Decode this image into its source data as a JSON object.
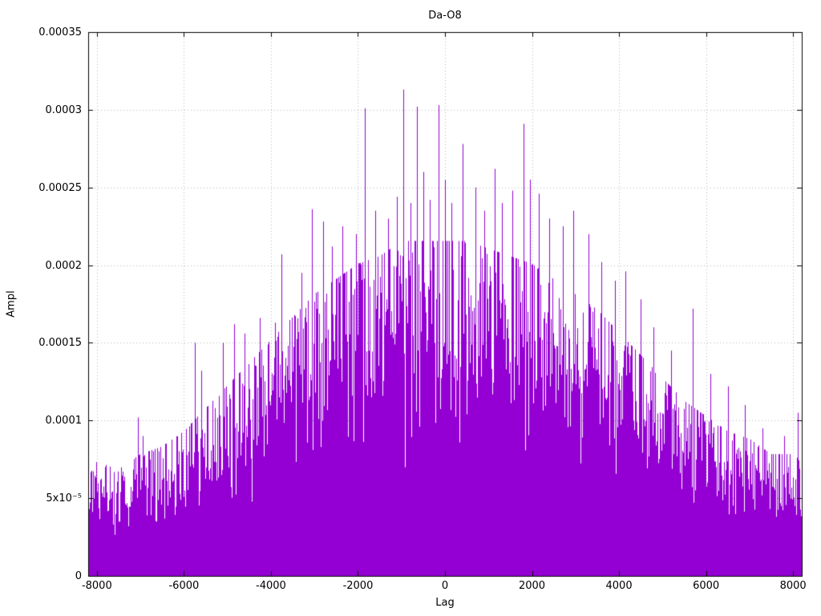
{
  "chart_data": {
    "type": "bar",
    "style": "impulses",
    "title": "Da-O8",
    "xlabel": "Lag",
    "ylabel": "Ampl",
    "xlim": [
      -8200,
      8200
    ],
    "ylim": [
      0,
      0.00035
    ],
    "grid": true,
    "legend": "none",
    "series_color": "#9400d3",
    "grid_color": "#b8b8b8",
    "axis_color": "#000000",
    "xticks": [
      {
        "value": -8000,
        "label": "-8000"
      },
      {
        "value": -6000,
        "label": "-6000"
      },
      {
        "value": -4000,
        "label": "-4000"
      },
      {
        "value": -2000,
        "label": "-2000"
      },
      {
        "value": 0,
        "label": "0"
      },
      {
        "value": 2000,
        "label": "2000"
      },
      {
        "value": 4000,
        "label": "4000"
      },
      {
        "value": 6000,
        "label": "6000"
      },
      {
        "value": 8000,
        "label": "8000"
      }
    ],
    "yticks": [
      {
        "value": 0,
        "label": "0"
      },
      {
        "value": 5e-05,
        "label": "5x10⁻⁵"
      },
      {
        "value": 0.0001,
        "label": "0.0001"
      },
      {
        "value": 0.00015,
        "label": "0.00015"
      },
      {
        "value": 0.0002,
        "label": "0.0002"
      },
      {
        "value": 0.00025,
        "label": "0.00025"
      },
      {
        "value": 0.0003,
        "label": "0.0003"
      },
      {
        "value": 0.00035,
        "label": "0.00035"
      }
    ],
    "envelope": [
      [
        -8200,
        6.5e-05
      ],
      [
        -8000,
        7.5e-05
      ],
      [
        -7500,
        7e-05
      ],
      [
        -7000,
        8e-05
      ],
      [
        -6500,
        8.5e-05
      ],
      [
        -6000,
        9.5e-05
      ],
      [
        -5500,
        0.00011
      ],
      [
        -5000,
        0.000125
      ],
      [
        -4500,
        0.00014
      ],
      [
        -4000,
        0.000155
      ],
      [
        -3500,
        0.00017
      ],
      [
        -3000,
        0.000185
      ],
      [
        -2500,
        0.000195
      ],
      [
        -2000,
        0.000205
      ],
      [
        -1500,
        0.00021
      ],
      [
        -1000,
        0.00022
      ],
      [
        -500,
        0.00022
      ],
      [
        0,
        0.00022
      ],
      [
        500,
        0.00022
      ],
      [
        1000,
        0.000215
      ],
      [
        1500,
        0.00021
      ],
      [
        2000,
        0.000205
      ],
      [
        2500,
        0.000195
      ],
      [
        3000,
        0.000185
      ],
      [
        3500,
        0.000175
      ],
      [
        4000,
        0.00016
      ],
      [
        4500,
        0.000145
      ],
      [
        5000,
        0.00013
      ],
      [
        5500,
        0.000115
      ],
      [
        6000,
        0.000105
      ],
      [
        6500,
        9.5e-05
      ],
      [
        7000,
        9e-05
      ],
      [
        7500,
        8e-05
      ],
      [
        8000,
        8e-05
      ],
      [
        8200,
        7.5e-05
      ]
    ],
    "peaks": [
      [
        -7050,
        0.000102
      ],
      [
        -6950,
        9e-05
      ],
      [
        -5750,
        0.00015
      ],
      [
        -5600,
        0.000132
      ],
      [
        -5100,
        0.00015
      ],
      [
        -4850,
        0.000162
      ],
      [
        -4600,
        0.000156
      ],
      [
        -4250,
        0.000166
      ],
      [
        -3900,
        0.000163
      ],
      [
        -3750,
        0.000207
      ],
      [
        -3300,
        0.000195
      ],
      [
        -3050,
        0.000236
      ],
      [
        -2800,
        0.000228
      ],
      [
        -2600,
        0.000212
      ],
      [
        -2350,
        0.000225
      ],
      [
        -2050,
        0.00022
      ],
      [
        -1850,
        0.000301
      ],
      [
        -1600,
        0.000235
      ],
      [
        -1300,
        0.00023
      ],
      [
        -1100,
        0.000244
      ],
      [
        -950,
        0.000313
      ],
      [
        -800,
        0.00024
      ],
      [
        -650,
        0.000302
      ],
      [
        -500,
        0.00026
      ],
      [
        -350,
        0.000242
      ],
      [
        -150,
        0.000303
      ],
      [
        0,
        0.000255
      ],
      [
        150,
        0.00024
      ],
      [
        400,
        0.000278
      ],
      [
        700,
        0.00025
      ],
      [
        900,
        0.000235
      ],
      [
        1150,
        0.000262
      ],
      [
        1300,
        0.00024
      ],
      [
        1550,
        0.000248
      ],
      [
        1800,
        0.000291
      ],
      [
        1950,
        0.000255
      ],
      [
        2150,
        0.000246
      ],
      [
        2400,
        0.00023
      ],
      [
        2700,
        0.000225
      ],
      [
        2950,
        0.000235
      ],
      [
        3300,
        0.00022
      ],
      [
        3600,
        0.000202
      ],
      [
        3900,
        0.00019
      ],
      [
        4150,
        0.000196
      ],
      [
        4500,
        0.000178
      ],
      [
        4800,
        0.00016
      ],
      [
        5200,
        0.000145
      ],
      [
        5700,
        0.000172
      ],
      [
        6100,
        0.00013
      ],
      [
        6500,
        0.000122
      ],
      [
        6900,
        0.00011
      ],
      [
        7300,
        9.5e-05
      ],
      [
        7800,
        9e-05
      ],
      [
        8100,
        0.000105
      ]
    ]
  }
}
